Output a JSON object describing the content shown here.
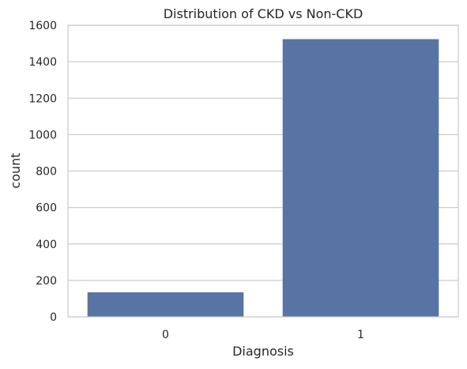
{
  "chart_data": {
    "type": "bar",
    "title": "Distribution of CKD vs Non-CKD",
    "xlabel": "Diagnosis",
    "ylabel": "count",
    "categories": [
      "0",
      "1"
    ],
    "values": [
      135,
      1524
    ],
    "ylim": [
      0,
      1600
    ],
    "yticks": [
      0,
      200,
      400,
      600,
      800,
      1000,
      1200,
      1400,
      1600
    ],
    "grid": true,
    "colors": {
      "bar": "#5874a4",
      "grid": "#cccccc",
      "frame": "#cccccc",
      "text": "#262626"
    }
  }
}
